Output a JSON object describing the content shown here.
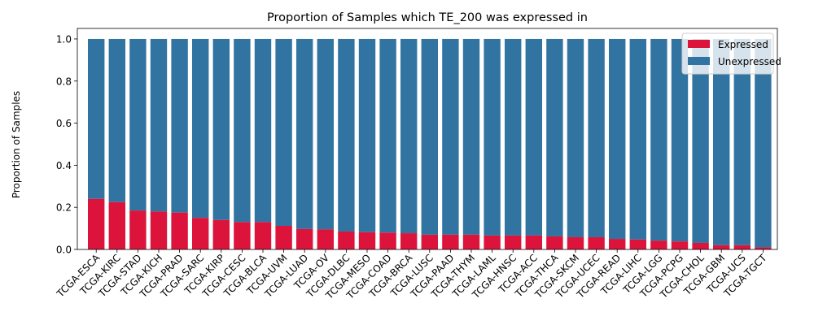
{
  "chart_data": {
    "type": "bar",
    "stacked": true,
    "title": "Proportion of Samples which TE_200 was expressed in",
    "xlabel": "",
    "ylabel": "Proportion of Samples",
    "ylim": [
      0,
      1.05
    ],
    "yticks": [
      "0.0",
      "0.2",
      "0.4",
      "0.6",
      "0.8",
      "1.0"
    ],
    "categories": [
      "TCGA-ESCA",
      "TCGA-KIRC",
      "TCGA-STAD",
      "TCGA-KICH",
      "TCGA-PRAD",
      "TCGA-SARC",
      "TCGA-KIRP",
      "TCGA-CESC",
      "TCGA-BLCA",
      "TCGA-UVM",
      "TCGA-LUAD",
      "TCGA-OV",
      "TCGA-DLBC",
      "TCGA-MESO",
      "TCGA-COAD",
      "TCGA-BRCA",
      "TCGA-LUSC",
      "TCGA-PAAD",
      "TCGA-THYM",
      "TCGA-LAML",
      "TCGA-HNSC",
      "TCGA-ACC",
      "TCGA-THCA",
      "TCGA-SKCM",
      "TCGA-UCEC",
      "TCGA-READ",
      "TCGA-LIHC",
      "TCGA-LGG",
      "TCGA-PCPG",
      "TCGA-CHOL",
      "TCGA-GBM",
      "TCGA-UCS",
      "TCGA-TGCT"
    ],
    "series": [
      {
        "name": "Expressed",
        "color": "#dc143c",
        "values": [
          0.24,
          0.225,
          0.185,
          0.18,
          0.175,
          0.15,
          0.14,
          0.13,
          0.13,
          0.112,
          0.097,
          0.095,
          0.085,
          0.082,
          0.08,
          0.077,
          0.07,
          0.07,
          0.07,
          0.066,
          0.066,
          0.066,
          0.062,
          0.058,
          0.058,
          0.05,
          0.047,
          0.042,
          0.038,
          0.031,
          0.02,
          0.02,
          0.01
        ]
      },
      {
        "name": "Unexpressed",
        "color": "#3274a1",
        "values": [
          0.76,
          0.775,
          0.815,
          0.82,
          0.825,
          0.85,
          0.86,
          0.87,
          0.87,
          0.888,
          0.903,
          0.905,
          0.915,
          0.918,
          0.92,
          0.923,
          0.93,
          0.93,
          0.93,
          0.934,
          0.934,
          0.934,
          0.938,
          0.942,
          0.942,
          0.95,
          0.953,
          0.958,
          0.962,
          0.969,
          0.98,
          0.98,
          0.99
        ]
      }
    ],
    "legend_position": "top-right",
    "grid": false
  }
}
